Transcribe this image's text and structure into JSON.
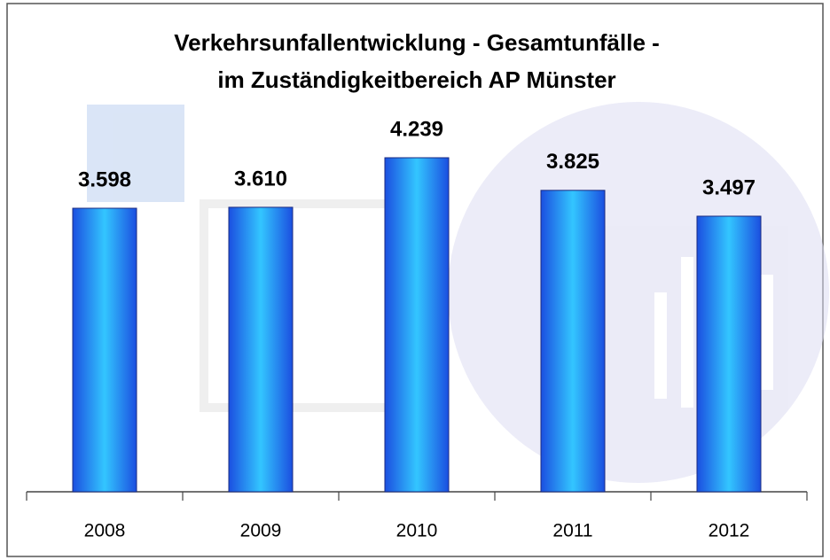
{
  "chart_data": {
    "type": "bar",
    "title": [
      "Verkehrsunfallentwicklung - Gesamtunfälle -",
      "im Zuständigkeitbereich AP Münster"
    ],
    "categories": [
      "2008",
      "2009",
      "2010",
      "2011",
      "2012"
    ],
    "values": [
      3598,
      3610,
      4239,
      3825,
      3497
    ],
    "value_labels": [
      "3.598",
      "3.610",
      "4.239",
      "3.825",
      "3.497"
    ],
    "color": "#33c6ff"
  }
}
